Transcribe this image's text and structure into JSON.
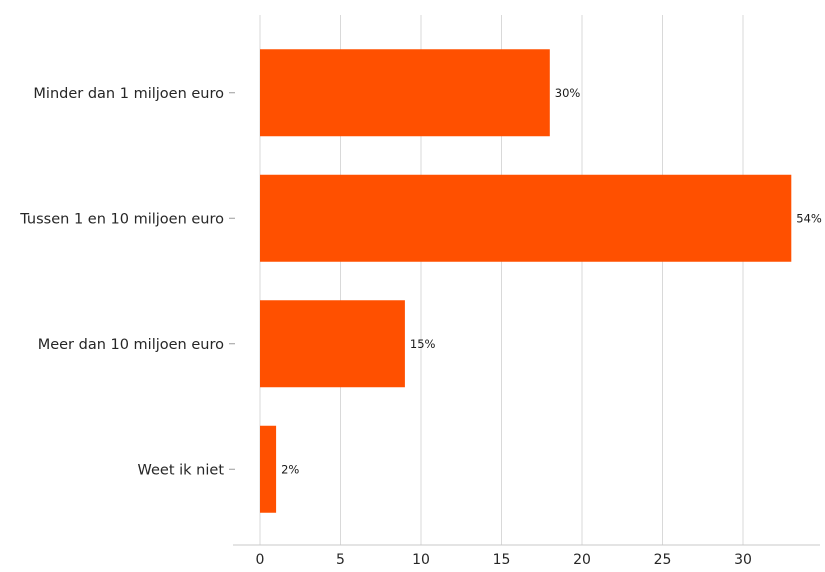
{
  "chart_data": {
    "type": "bar",
    "orientation": "horizontal",
    "categories": [
      "Minder dan 1 miljoen euro",
      "Tussen 1 en 10 miljoen euro",
      "Meer dan 10 miljoen euro",
      "Weet ik niet"
    ],
    "values": [
      18,
      33,
      9,
      1
    ],
    "data_labels": [
      "30%",
      "54%",
      "15%",
      "2%"
    ],
    "x_ticks": [
      0,
      5,
      10,
      15,
      20,
      25,
      30
    ],
    "xlim": [
      0,
      34.8
    ],
    "grid": true,
    "colors": {
      "bar": "#ff5000"
    }
  }
}
